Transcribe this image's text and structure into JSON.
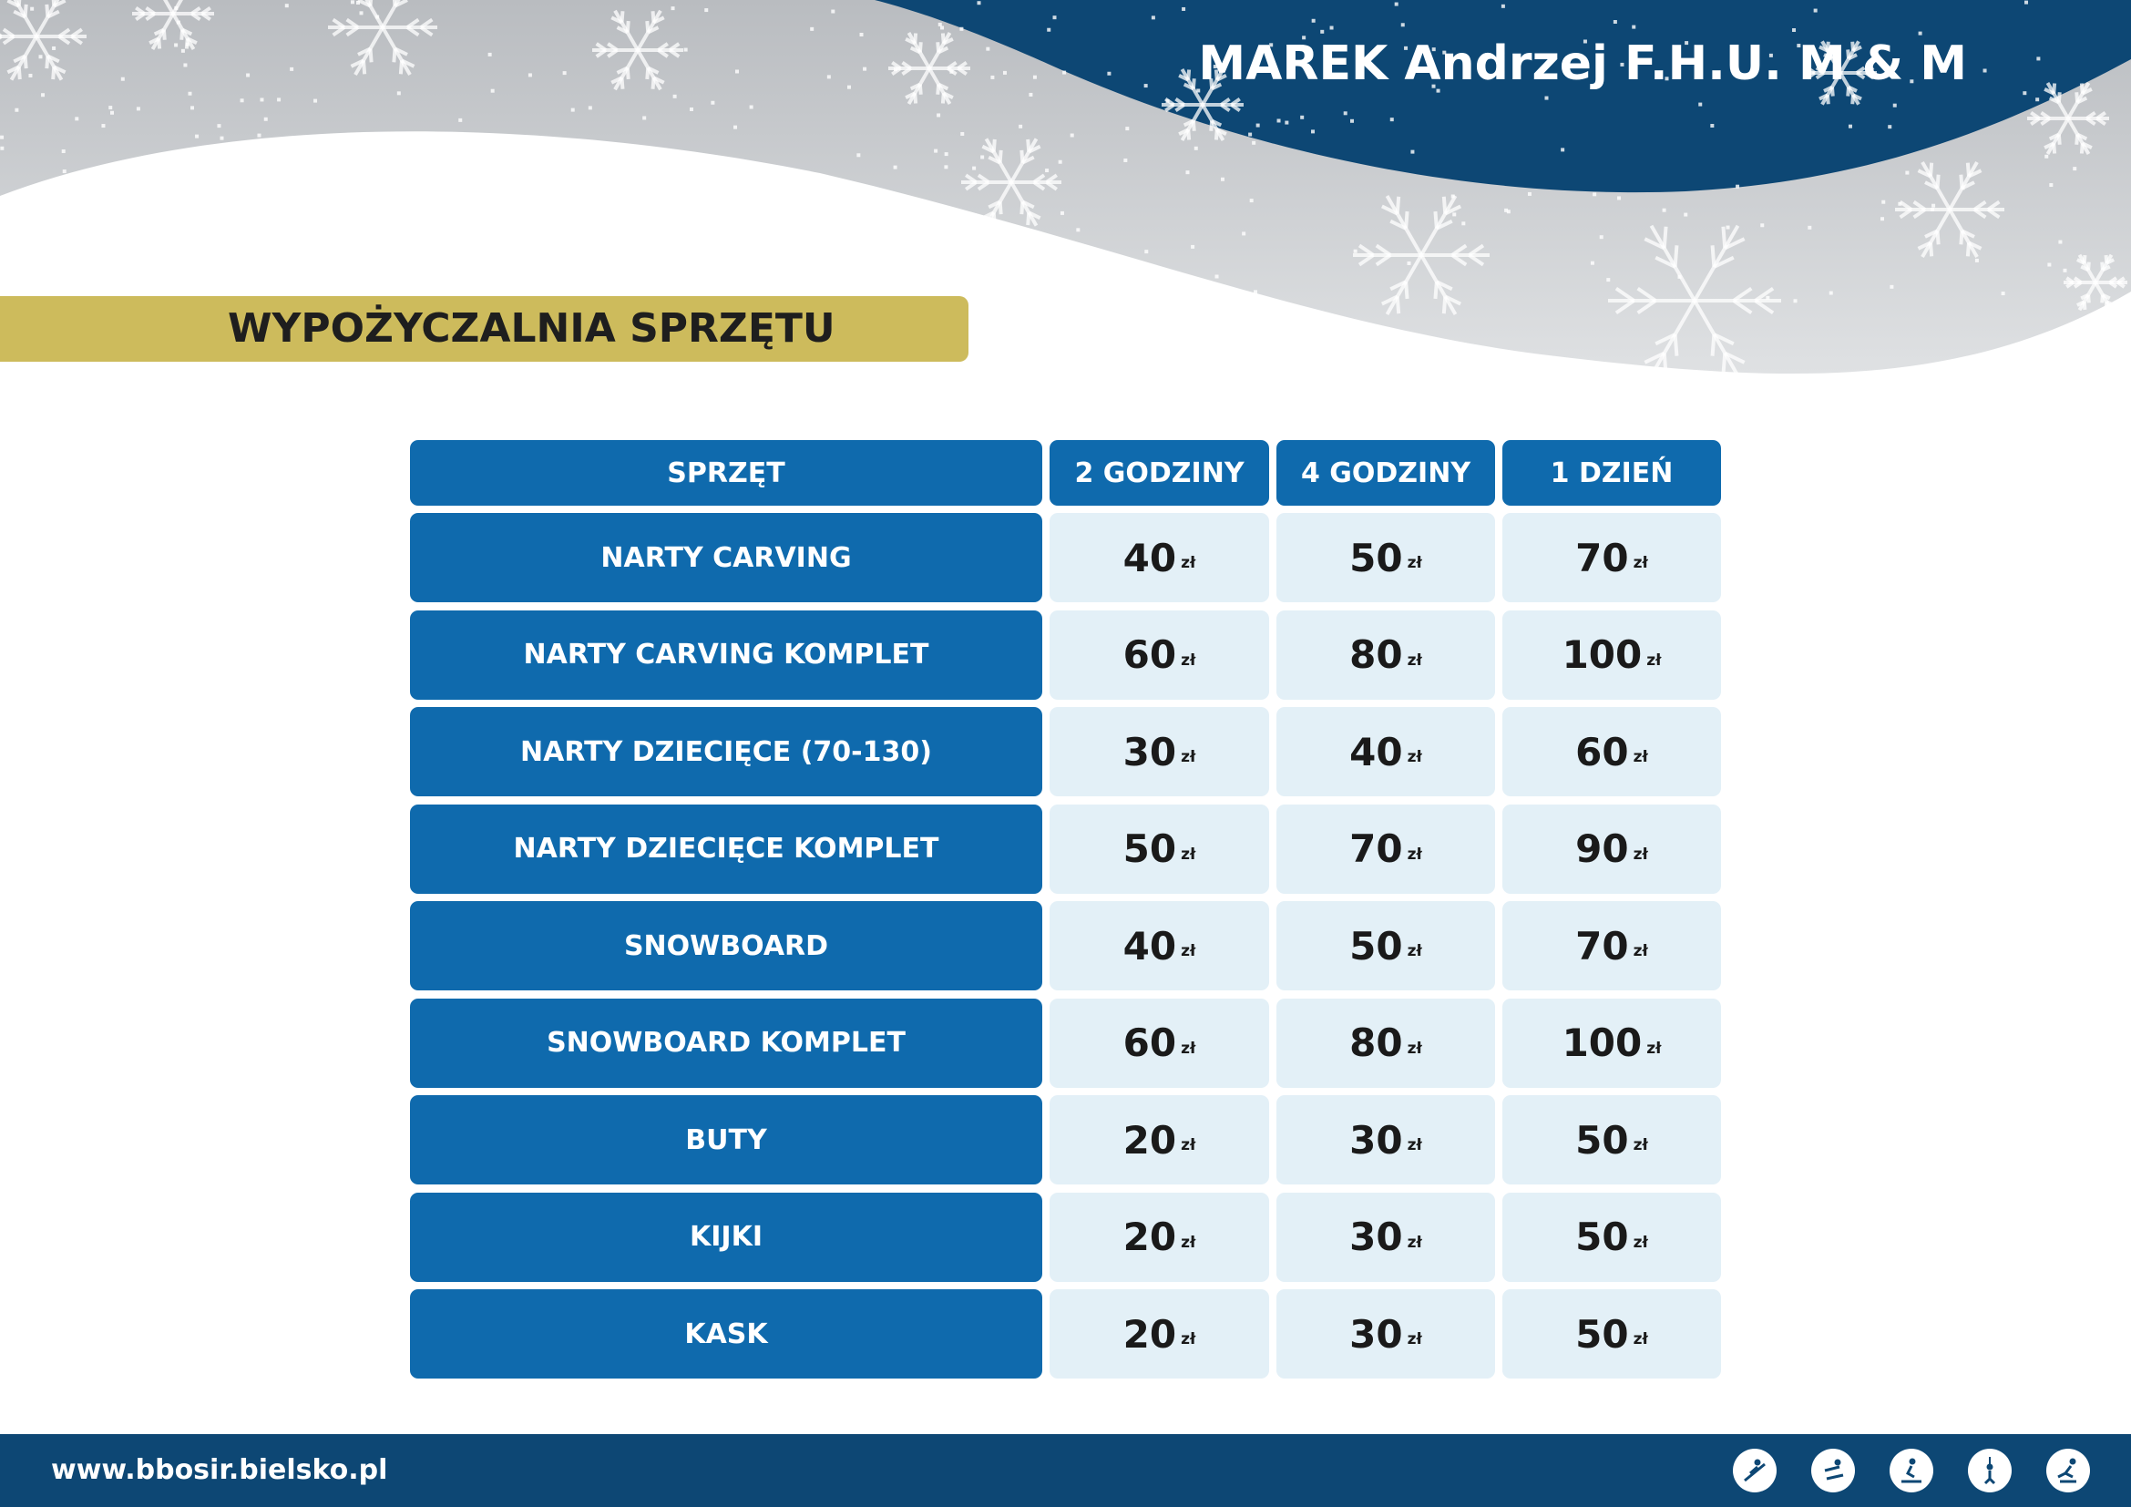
{
  "header": {
    "company": "MAREK Andrzej F.H.U. M & M"
  },
  "section": {
    "title": "WYPOŻYCZALNIA SPRZĘTU"
  },
  "table": {
    "columns": [
      "SPRZĘT",
      "2 GODZINY",
      "4 GODZINY",
      "1 DZIEŃ"
    ],
    "currency": "zł",
    "rows": [
      {
        "name": "NARTY CARVING",
        "prices": [
          "40",
          "50",
          "70"
        ]
      },
      {
        "name": "NARTY CARVING KOMPLET",
        "prices": [
          "60",
          "80",
          "100"
        ]
      },
      {
        "name": "NARTY DZIECIĘCE (70-130)",
        "prices": [
          "30",
          "40",
          "60"
        ]
      },
      {
        "name": "NARTY DZIECIĘCE KOMPLET",
        "prices": [
          "50",
          "70",
          "90"
        ]
      },
      {
        "name": "SNOWBOARD",
        "prices": [
          "40",
          "50",
          "70"
        ]
      },
      {
        "name": "SNOWBOARD KOMPLET",
        "prices": [
          "60",
          "80",
          "100"
        ]
      },
      {
        "name": "BUTY",
        "prices": [
          "20",
          "30",
          "50"
        ]
      },
      {
        "name": "KIJKI",
        "prices": [
          "20",
          "30",
          "50"
        ]
      },
      {
        "name": "KASK",
        "prices": [
          "20",
          "30",
          "50"
        ]
      }
    ]
  },
  "footer": {
    "url": "www.bbosir.bielsko.pl",
    "icons": [
      "ski-jump-icon",
      "snowboard-icon",
      "skiing-icon",
      "ski-lift-icon",
      "skating-icon"
    ]
  },
  "colors": {
    "navy": "#0d4774",
    "blue": "#0f6aad",
    "light": "#e3f0f7",
    "gold": "#cdbb5c"
  }
}
